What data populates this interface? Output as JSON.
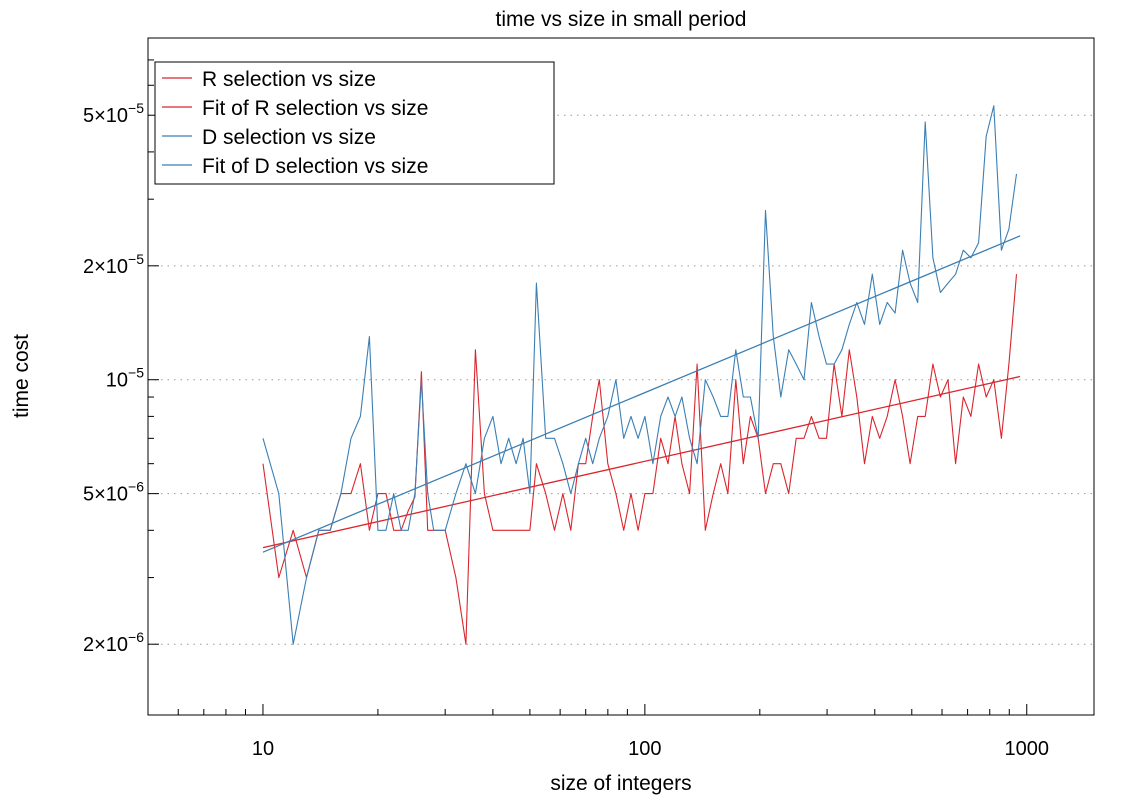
{
  "chart_data": {
    "type": "line",
    "title": "time vs size in small period",
    "xlabel": "size of integers",
    "ylabel": "time cost",
    "x_scale": "log",
    "y_scale": "log",
    "xlim": [
      5,
      1500
    ],
    "ylim": [
      1.3e-06,
      8e-05
    ],
    "x_ticks": [
      {
        "value": 10,
        "label": "10"
      },
      {
        "value": 100,
        "label": "100"
      },
      {
        "value": 1000,
        "label": "1000"
      }
    ],
    "y_ticks": [
      {
        "value": 2e-06,
        "mantissa": "2×10",
        "exponent": "−6"
      },
      {
        "value": 5e-06,
        "mantissa": "5×10",
        "exponent": "−6"
      },
      {
        "value": 1e-05,
        "mantissa": "10",
        "exponent": "−5"
      },
      {
        "value": 2e-05,
        "mantissa": "2×10",
        "exponent": "−5"
      },
      {
        "value": 5e-05,
        "mantissa": "5×10",
        "exponent": "−5"
      }
    ],
    "grid": "horizontal-dotted",
    "legend_position": "top-left",
    "x": [
      10,
      11,
      12,
      13,
      14,
      15,
      16,
      17,
      18,
      19,
      20,
      21,
      22,
      23,
      24,
      25,
      26,
      27,
      28,
      29,
      30,
      32,
      34,
      36,
      38,
      40,
      42,
      44,
      46,
      48,
      50,
      52,
      55,
      58,
      61,
      64,
      67,
      70,
      73,
      76,
      80,
      84,
      88,
      92,
      96,
      100,
      105,
      110,
      115,
      120,
      125,
      131,
      137,
      144,
      151,
      158,
      165,
      173,
      181,
      189,
      198,
      207,
      217,
      227,
      238,
      249,
      261,
      273,
      286,
      299,
      313,
      328,
      343,
      359,
      376,
      394,
      412,
      431,
      452,
      473,
      495,
      518,
      542,
      568,
      594,
      622,
      651,
      682,
      714,
      748,
      783,
      820,
      858,
      898,
      940
    ],
    "series": [
      {
        "name": "R selection vs size",
        "color": "#d9262e",
        "values": [
          6e-06,
          3e-06,
          4e-06,
          3e-06,
          4e-06,
          4e-06,
          5e-06,
          5e-06,
          6e-06,
          4e-06,
          5e-06,
          5e-06,
          4e-06,
          4e-06,
          4.5e-06,
          4.9e-06,
          1.05e-05,
          4e-06,
          4e-06,
          4e-06,
          4e-06,
          3e-06,
          2e-06,
          1.2e-05,
          5e-06,
          4e-06,
          4e-06,
          4e-06,
          4e-06,
          4e-06,
          4e-06,
          6e-06,
          5e-06,
          4e-06,
          5e-06,
          4e-06,
          6e-06,
          6e-06,
          8e-06,
          1e-05,
          6e-06,
          5e-06,
          4e-06,
          5e-06,
          4e-06,
          5e-06,
          5e-06,
          7e-06,
          6e-06,
          8e-06,
          6e-06,
          5e-06,
          1.1e-05,
          4e-06,
          5e-06,
          6e-06,
          5e-06,
          1e-05,
          6e-06,
          8e-06,
          7e-06,
          5e-06,
          6e-06,
          6e-06,
          5e-06,
          7e-06,
          7e-06,
          8e-06,
          7e-06,
          7e-06,
          1.1e-05,
          8e-06,
          1.2e-05,
          9e-06,
          6e-06,
          8e-06,
          7e-06,
          8e-06,
          1e-05,
          8e-06,
          6e-06,
          8e-06,
          8e-06,
          1.1e-05,
          9e-06,
          1e-05,
          6e-06,
          9e-06,
          8e-06,
          1.1e-05,
          9e-06,
          1e-05,
          7e-06,
          1.1e-05,
          1.9e-05
        ]
      },
      {
        "name": "Fit of R selection vs size",
        "color": "#d9262e",
        "fit": true,
        "x": [
          10,
          960
        ],
        "values": [
          3.6e-06,
          1.02e-05
        ]
      },
      {
        "name": "D selection vs size",
        "color": "#3b7fb4",
        "values": [
          7e-06,
          5e-06,
          2e-06,
          3e-06,
          4e-06,
          4e-06,
          5e-06,
          7e-06,
          8e-06,
          1.3e-05,
          4e-06,
          4e-06,
          5e-06,
          4e-06,
          4e-06,
          5e-06,
          1e-05,
          5e-06,
          4e-06,
          4e-06,
          4e-06,
          5e-06,
          6e-06,
          5e-06,
          7e-06,
          8e-06,
          6e-06,
          7e-06,
          6e-06,
          7e-06,
          5e-06,
          1.8e-05,
          7e-06,
          7e-06,
          6e-06,
          5e-06,
          6e-06,
          7e-06,
          6e-06,
          7e-06,
          8e-06,
          1e-05,
          7e-06,
          8e-06,
          7e-06,
          8e-06,
          6e-06,
          8e-06,
          9e-06,
          8e-06,
          9e-06,
          7e-06,
          6e-06,
          1e-05,
          9e-06,
          8e-06,
          8e-06,
          1.2e-05,
          9e-06,
          9e-06,
          7e-06,
          2.8e-05,
          1.3e-05,
          9e-06,
          1.2e-05,
          1.1e-05,
          1e-05,
          1.6e-05,
          1.3e-05,
          1.1e-05,
          1.1e-05,
          1.2e-05,
          1.4e-05,
          1.6e-05,
          1.4e-05,
          1.9e-05,
          1.4e-05,
          1.6e-05,
          1.5e-05,
          2.2e-05,
          1.8e-05,
          1.6e-05,
          4.8e-05,
          2.1e-05,
          1.7e-05,
          1.8e-05,
          1.9e-05,
          2.2e-05,
          2.1e-05,
          2.3e-05,
          4.4e-05,
          5.3e-05,
          2.2e-05,
          2.5e-05,
          3.5e-05
        ]
      },
      {
        "name": "Fit of D selection vs size",
        "color": "#3b7fb4",
        "fit": true,
        "x": [
          10,
          960
        ],
        "values": [
          3.5e-06,
          2.4e-05
        ]
      }
    ]
  }
}
